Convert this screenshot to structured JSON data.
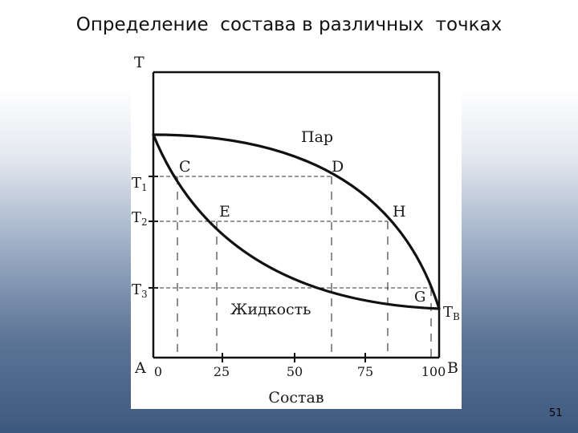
{
  "slide": {
    "title": "Определение  состава в различных  точках",
    "page_number": "51"
  },
  "diagram": {
    "axis_t": "T",
    "t1": "T",
    "t1_sub": "1",
    "t2": "T",
    "t2_sub": "2",
    "t3": "T",
    "t3_sub": "3",
    "tb": "T",
    "tb_sub": "B",
    "point_c": "C",
    "point_d": "D",
    "point_e": "E",
    "point_h": "H",
    "point_g": "G",
    "region_vapor": "Пар",
    "region_liquid": "Жидкость",
    "corner_a": "A",
    "corner_b": "B",
    "tick_0": "0",
    "tick_25": "25",
    "tick_50": "50",
    "tick_75": "75",
    "tick_100": "100",
    "xlabel": "Состав"
  }
}
